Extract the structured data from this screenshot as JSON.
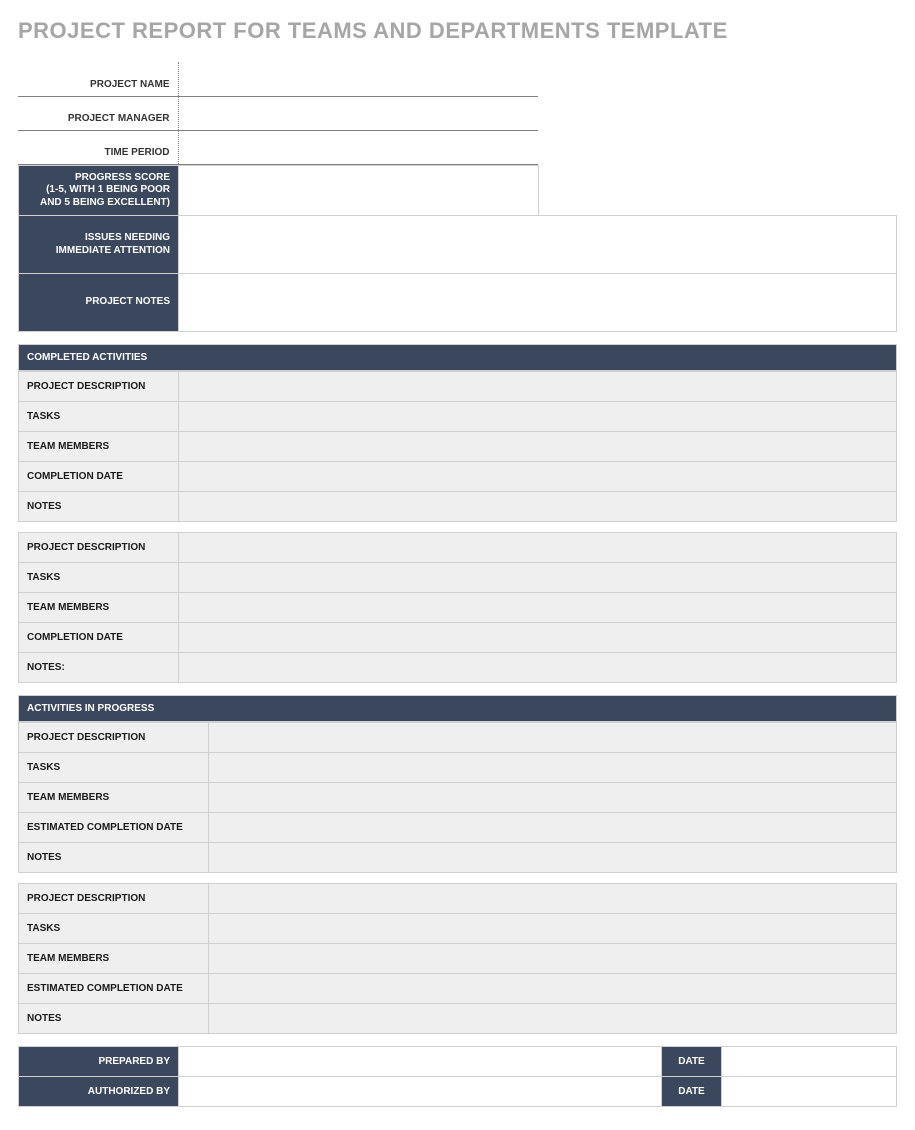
{
  "title": "PROJECT REPORT FOR TEAMS AND DEPARTMENTS TEMPLATE",
  "colors": {
    "dark_header_bg": "#3a475c",
    "dark_header_text": "#ffffff",
    "light_cell_bg": "#efefef",
    "border": "#d0d0d0",
    "title_text": "#a6a6a6",
    "body_text": "#1a1a1a"
  },
  "top_info": {
    "rows": [
      {
        "label": "PROJECT NAME",
        "value": ""
      },
      {
        "label": "PROJECT MANAGER",
        "value": ""
      },
      {
        "label": "TIME PERIOD",
        "value": ""
      }
    ]
  },
  "meta": {
    "progress_score": {
      "label": "PROGRESS SCORE\n(1-5, WITH 1 BEING POOR\nAND 5 BEING EXCELLENT)",
      "value": ""
    },
    "issues": {
      "label": "ISSUES NEEDING\nIMMEDIATE ATTENTION",
      "value": ""
    },
    "notes": {
      "label": "PROJECT NOTES",
      "value": ""
    }
  },
  "sections": {
    "completed": {
      "header": "COMPLETED ACTIVITIES",
      "blocks": [
        {
          "rows": [
            {
              "label": "PROJECT DESCRIPTION",
              "value": ""
            },
            {
              "label": "TASKS",
              "value": ""
            },
            {
              "label": "TEAM MEMBERS",
              "value": ""
            },
            {
              "label": "COMPLETION DATE",
              "value": ""
            },
            {
              "label": "NOTES",
              "value": ""
            }
          ]
        },
        {
          "rows": [
            {
              "label": "PROJECT DESCRIPTION",
              "value": ""
            },
            {
              "label": "TASKS",
              "value": ""
            },
            {
              "label": "TEAM MEMBERS",
              "value": ""
            },
            {
              "label": "COMPLETION DATE",
              "value": ""
            },
            {
              "label": "NOTES:",
              "value": ""
            }
          ]
        }
      ]
    },
    "in_progress": {
      "header": "ACTIVITIES IN PROGRESS",
      "blocks": [
        {
          "rows": [
            {
              "label": "PROJECT DESCRIPTION",
              "value": ""
            },
            {
              "label": "TASKS",
              "value": ""
            },
            {
              "label": "TEAM MEMBERS",
              "value": ""
            },
            {
              "label": "ESTIMATED COMPLETION DATE",
              "value": ""
            },
            {
              "label": "NOTES",
              "value": ""
            }
          ]
        },
        {
          "rows": [
            {
              "label": "PROJECT DESCRIPTION",
              "value": ""
            },
            {
              "label": "TASKS",
              "value": ""
            },
            {
              "label": "TEAM MEMBERS",
              "value": ""
            },
            {
              "label": "ESTIMATED COMPLETION DATE",
              "value": ""
            },
            {
              "label": "NOTES",
              "value": ""
            }
          ]
        }
      ]
    }
  },
  "signatures": {
    "prepared_by": {
      "label": "PREPARED BY",
      "value": "",
      "date_label": "DATE",
      "date_value": ""
    },
    "authorized_by": {
      "label": "AUTHORIZED BY",
      "value": "",
      "date_label": "DATE",
      "date_value": ""
    }
  }
}
